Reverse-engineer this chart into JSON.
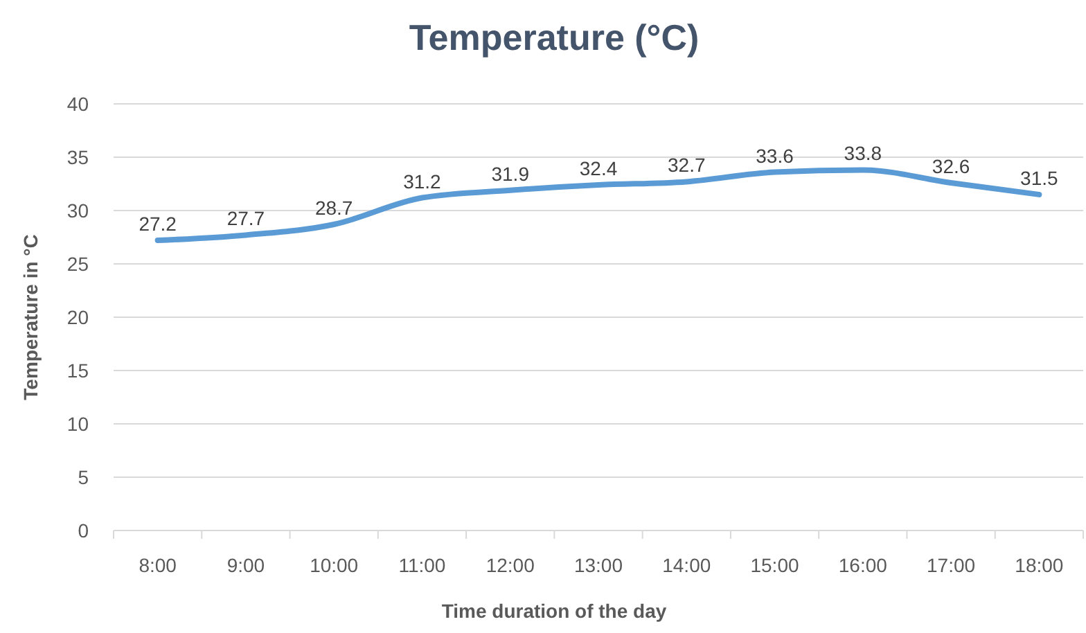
{
  "chart_data": {
    "type": "line",
    "title": "Temperature (°C)",
    "xlabel": "Time duration of the day",
    "ylabel": "Temperature in °C",
    "categories": [
      "8:00",
      "9:00",
      "10:00",
      "11:00",
      "12:00",
      "13:00",
      "14:00",
      "15:00",
      "16:00",
      "17:00",
      "18:00"
    ],
    "series": [
      {
        "color": "#5b9bd5",
        "values": [
          27.2,
          27.7,
          28.7,
          31.2,
          31.9,
          32.4,
          32.7,
          33.6,
          33.8,
          32.6,
          31.5
        ]
      }
    ],
    "ylim": [
      0,
      40
    ],
    "yticks": [
      0,
      5,
      10,
      15,
      20,
      25,
      30,
      35,
      40
    ],
    "grid": "y",
    "data_labels": true,
    "marker": "none",
    "line_style": "solid"
  }
}
